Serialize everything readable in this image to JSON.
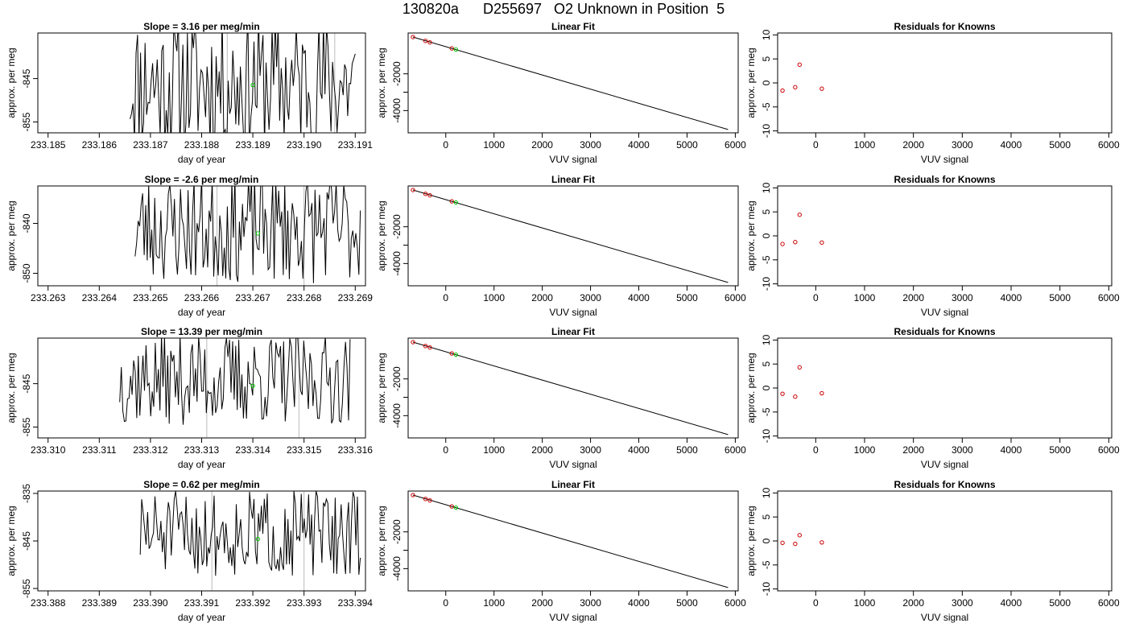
{
  "figure": {
    "title": "130820a      D255697   O2 Unknown in Position  5"
  },
  "colors": {
    "trace": "#000000",
    "known_points": "#cc0000",
    "unknown_point": "#00cc00",
    "gray_lines": "#bbbbbb",
    "frame": "#000000"
  },
  "chart_data": [
    {
      "type": "line",
      "panel": "trace",
      "row": 0,
      "title": "Slope =  3.16  per meg/min",
      "xlabel": "day of year",
      "ylabel": "approx. per meg",
      "xlim": [
        233.1848,
        233.1912
      ],
      "ylim": [
        -857.5,
        -834.5
      ],
      "xticks": [
        233.185,
        233.186,
        233.187,
        233.188,
        233.189,
        233.19,
        233.191
      ],
      "xtick_labels": [
        "233.185",
        "233.186",
        "233.187",
        "233.188",
        "233.189",
        "233.190",
        "233.191"
      ],
      "yticks": [
        -845,
        -855
      ],
      "ytick_labels": [
        "-845",
        "-855"
      ],
      "trace_start": 233.1866,
      "trace_end": 233.191,
      "trace_points": 150,
      "seed": 11,
      "trace_mean": -846.0,
      "trace_amp": 16.0,
      "gray_lines_x": [
        233.1885,
        233.1906
      ],
      "unknown_point": {
        "x": 233.189,
        "y": -846.5
      }
    },
    {
      "type": "line",
      "panel": "trace",
      "row": 1,
      "title": "Slope =  -2.6  per meg/min",
      "xlabel": "day of year",
      "ylabel": "approx. per meg",
      "xlim": [
        233.2628,
        233.2692
      ],
      "ylim": [
        -852.5,
        -832.5
      ],
      "xticks": [
        233.263,
        233.264,
        233.265,
        233.266,
        233.267,
        233.268,
        233.269
      ],
      "xtick_labels": [
        "233.263",
        "233.264",
        "233.265",
        "233.266",
        "233.267",
        "233.268",
        "233.269"
      ],
      "yticks": [
        -840,
        -850
      ],
      "ytick_labels": [
        "-840",
        "-850"
      ],
      "trace_start": 233.2647,
      "trace_end": 233.2691,
      "trace_points": 150,
      "seed": 23,
      "trace_mean": -841.0,
      "trace_amp": 11.0,
      "gray_lines_x": [
        233.2663,
        233.268
      ],
      "unknown_point": {
        "x": 233.2671,
        "y": -842.0
      }
    },
    {
      "type": "line",
      "panel": "trace",
      "row": 2,
      "title": "Slope =  13.39  per meg/min",
      "xlabel": "day of year",
      "ylabel": "approx. per meg",
      "xlim": [
        233.3098,
        233.3162
      ],
      "ylim": [
        -857.5,
        -834.5
      ],
      "xticks": [
        233.31,
        233.311,
        233.312,
        233.313,
        233.314,
        233.315,
        233.316
      ],
      "xtick_labels": [
        "233.310",
        "233.311",
        "233.312",
        "233.313",
        "233.314",
        "233.315",
        "233.316"
      ],
      "yticks": [
        -845,
        -855
      ],
      "ytick_labels": [
        "-845",
        "-855"
      ],
      "trace_start": 233.3114,
      "trace_end": 233.3159,
      "trace_points": 150,
      "seed": 37,
      "trace_mean": -844.0,
      "trace_amp": 10.5,
      "gray_lines_x": [
        233.3131,
        233.3149
      ],
      "unknown_point": {
        "x": 233.314,
        "y": -845.5
      }
    },
    {
      "type": "line",
      "panel": "trace",
      "row": 3,
      "title": "Slope =  0.62  per meg/min",
      "xlabel": "day of year",
      "ylabel": "approx. per meg",
      "xlim": [
        233.3878,
        233.3942
      ],
      "ylim": [
        -855.5,
        -834.5
      ],
      "xticks": [
        233.388,
        233.389,
        233.39,
        233.391,
        233.392,
        233.393,
        233.394
      ],
      "xtick_labels": [
        "233.388",
        "233.389",
        "233.390",
        "233.391",
        "233.392",
        "233.393",
        "233.394"
      ],
      "yticks": [
        -835,
        -845,
        -855
      ],
      "ytick_labels": [
        "-835",
        "-845",
        "-855"
      ],
      "trace_start": 233.3898,
      "trace_end": 233.3941,
      "trace_points": 150,
      "seed": 51,
      "trace_mean": -843.5,
      "trace_amp": 9.0,
      "gray_lines_x": [
        233.3912,
        233.393
      ],
      "unknown_point": {
        "x": 233.3921,
        "y": -844.6
      }
    },
    {
      "type": "scatter",
      "panel": "fit",
      "row": 0,
      "title": "Linear Fit",
      "xlabel": "VUV signal",
      "ylabel": "approx. per meg",
      "xlim": [
        -780,
        6060
      ],
      "ylim": [
        -5210,
        220
      ],
      "xticks": [
        0,
        1000,
        2000,
        3000,
        4000,
        5000,
        6000
      ],
      "xtick_labels": [
        "0",
        "1000",
        "2000",
        "3000",
        "4000",
        "5000",
        "6000"
      ],
      "yticks": [
        -2000,
        -3000,
        -4000
      ],
      "ytick_labels": [
        "-2000",
        "",
        "-4000"
      ],
      "line": {
        "x": [
          -680,
          5850
        ],
        "y": [
          0,
          -5030
        ]
      },
      "known_points": [
        {
          "x": -680,
          "y": 0
        },
        {
          "x": -420,
          "y": -210
        },
        {
          "x": -330,
          "y": -290
        },
        {
          "x": 125,
          "y": -618
        }
      ],
      "unknown_point": {
        "x": 210,
        "y": -680
      }
    },
    {
      "type": "scatter",
      "panel": "fit",
      "row": 1,
      "title": "Linear Fit",
      "xlabel": "VUV signal",
      "ylabel": "approx. per meg",
      "xlim": [
        -780,
        6060
      ],
      "ylim": [
        -5210,
        220
      ],
      "xticks": [
        0,
        1000,
        2000,
        3000,
        4000,
        5000,
        6000
      ],
      "xtick_labels": [
        "0",
        "1000",
        "2000",
        "3000",
        "4000",
        "5000",
        "6000"
      ],
      "yticks": [
        -2000,
        -3000,
        -4000
      ],
      "ytick_labels": [
        "-2000",
        "",
        "-4000"
      ],
      "line": {
        "x": [
          -680,
          5850
        ],
        "y": [
          0,
          -5030
        ]
      },
      "known_points": [
        {
          "x": -680,
          "y": 0
        },
        {
          "x": -420,
          "y": -210
        },
        {
          "x": -330,
          "y": -290
        },
        {
          "x": 125,
          "y": -618
        }
      ],
      "unknown_point": {
        "x": 210,
        "y": -680
      }
    },
    {
      "type": "scatter",
      "panel": "fit",
      "row": 2,
      "title": "Linear Fit",
      "xlabel": "VUV signal",
      "ylabel": "approx. per meg",
      "xlim": [
        -780,
        6060
      ],
      "ylim": [
        -5210,
        220
      ],
      "xticks": [
        0,
        1000,
        2000,
        3000,
        4000,
        5000,
        6000
      ],
      "xtick_labels": [
        "0",
        "1000",
        "2000",
        "3000",
        "4000",
        "5000",
        "6000"
      ],
      "yticks": [
        -2000,
        -3000,
        -4000
      ],
      "ytick_labels": [
        "-2000",
        "",
        "-4000"
      ],
      "line": {
        "x": [
          -680,
          5850
        ],
        "y": [
          0,
          -5030
        ]
      },
      "known_points": [
        {
          "x": -680,
          "y": 0
        },
        {
          "x": -420,
          "y": -210
        },
        {
          "x": -330,
          "y": -290
        },
        {
          "x": 125,
          "y": -618
        }
      ],
      "unknown_point": {
        "x": 210,
        "y": -680
      }
    },
    {
      "type": "scatter",
      "panel": "fit",
      "row": 3,
      "title": "Linear Fit",
      "xlabel": "VUV signal",
      "ylabel": "approx. per meg",
      "xlim": [
        -780,
        6060
      ],
      "ylim": [
        -5210,
        220
      ],
      "xticks": [
        0,
        1000,
        2000,
        3000,
        4000,
        5000,
        6000
      ],
      "xtick_labels": [
        "0",
        "1000",
        "2000",
        "3000",
        "4000",
        "5000",
        "6000"
      ],
      "yticks": [
        -2000,
        -3000,
        -4000
      ],
      "ytick_labels": [
        "-2000",
        "",
        "-4000"
      ],
      "line": {
        "x": [
          -680,
          5850
        ],
        "y": [
          0,
          -5030
        ]
      },
      "known_points": [
        {
          "x": -680,
          "y": 0
        },
        {
          "x": -420,
          "y": -210
        },
        {
          "x": -330,
          "y": -290
        },
        {
          "x": 125,
          "y": -618
        }
      ],
      "unknown_point": {
        "x": 210,
        "y": -680
      }
    },
    {
      "type": "scatter",
      "panel": "resid",
      "row": 0,
      "title": "Residuals for Knowns",
      "xlabel": "VUV signal",
      "ylabel": "approx. per meg",
      "xlim": [
        -780,
        6060
      ],
      "ylim": [
        -10.4,
        10.4
      ],
      "xticks": [
        0,
        1000,
        2000,
        3000,
        4000,
        5000,
        6000
      ],
      "xtick_labels": [
        "0",
        "1000",
        "2000",
        "3000",
        "4000",
        "5000",
        "6000"
      ],
      "yticks": [
        10,
        5,
        0,
        -5,
        -10
      ],
      "ytick_labels": [
        "10",
        "5",
        "0",
        "-5",
        "-10"
      ],
      "known_points": [
        {
          "x": -680,
          "y": -1.6
        },
        {
          "x": -420,
          "y": -0.9
        },
        {
          "x": -330,
          "y": 3.8
        },
        {
          "x": 125,
          "y": -1.2
        }
      ]
    },
    {
      "type": "scatter",
      "panel": "resid",
      "row": 1,
      "title": "Residuals for Knowns",
      "xlabel": "VUV signal",
      "ylabel": "approx. per meg",
      "xlim": [
        -780,
        6060
      ],
      "ylim": [
        -10.4,
        10.4
      ],
      "xticks": [
        0,
        1000,
        2000,
        3000,
        4000,
        5000,
        6000
      ],
      "xtick_labels": [
        "0",
        "1000",
        "2000",
        "3000",
        "4000",
        "5000",
        "6000"
      ],
      "yticks": [
        10,
        5,
        0,
        -5,
        -10
      ],
      "ytick_labels": [
        "10",
        "5",
        "0",
        "-5",
        "-10"
      ],
      "known_points": [
        {
          "x": -680,
          "y": -1.7
        },
        {
          "x": -420,
          "y": -1.3
        },
        {
          "x": -330,
          "y": 4.4
        },
        {
          "x": 125,
          "y": -1.4
        }
      ]
    },
    {
      "type": "scatter",
      "panel": "resid",
      "row": 2,
      "title": "Residuals for Knowns",
      "xlabel": "VUV signal",
      "ylabel": "approx. per meg",
      "xlim": [
        -780,
        6060
      ],
      "ylim": [
        -10.4,
        10.4
      ],
      "xticks": [
        0,
        1000,
        2000,
        3000,
        4000,
        5000,
        6000
      ],
      "xtick_labels": [
        "0",
        "1000",
        "2000",
        "3000",
        "4000",
        "5000",
        "6000"
      ],
      "yticks": [
        10,
        5,
        0,
        -5,
        -10
      ],
      "ytick_labels": [
        "10",
        "5",
        "0",
        "-5",
        "-10"
      ],
      "known_points": [
        {
          "x": -680,
          "y": -1.2
        },
        {
          "x": -420,
          "y": -1.8
        },
        {
          "x": -330,
          "y": 4.3
        },
        {
          "x": 125,
          "y": -1.1
        }
      ]
    },
    {
      "type": "scatter",
      "panel": "resid",
      "row": 3,
      "title": "Residuals for Knowns",
      "xlabel": "VUV signal",
      "ylabel": "approx. per meg",
      "xlim": [
        -780,
        6060
      ],
      "ylim": [
        -10.4,
        10.4
      ],
      "xticks": [
        0,
        1000,
        2000,
        3000,
        4000,
        5000,
        6000
      ],
      "xtick_labels": [
        "0",
        "1000",
        "2000",
        "3000",
        "4000",
        "5000",
        "6000"
      ],
      "yticks": [
        10,
        5,
        0,
        -5,
        -10
      ],
      "ytick_labels": [
        "10",
        "5",
        "0",
        "-5",
        "-10"
      ],
      "known_points": [
        {
          "x": -680,
          "y": -0.4
        },
        {
          "x": -420,
          "y": -0.6
        },
        {
          "x": -330,
          "y": 1.2
        },
        {
          "x": 125,
          "y": -0.3
        }
      ]
    }
  ]
}
